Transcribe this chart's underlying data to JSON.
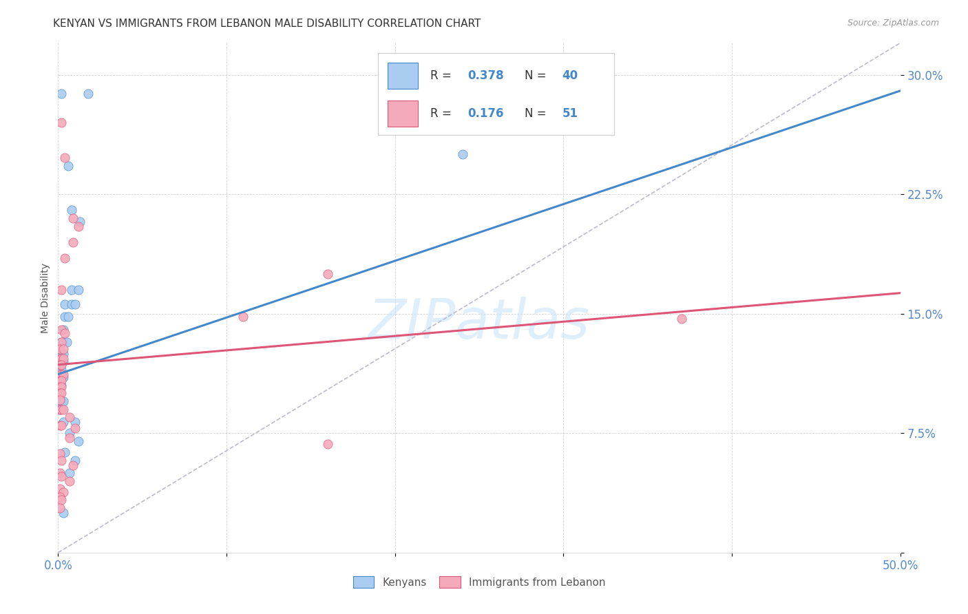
{
  "title": "KENYAN VS IMMIGRANTS FROM LEBANON MALE DISABILITY CORRELATION CHART",
  "source": "Source: ZipAtlas.com",
  "ylabel": "Male Disability",
  "xlim": [
    0.0,
    0.5
  ],
  "ylim": [
    0.0,
    0.32
  ],
  "xticks": [
    0.0,
    0.1,
    0.2,
    0.3,
    0.4,
    0.5
  ],
  "xticklabels": [
    "0.0%",
    "",
    "",
    "",
    "",
    "50.0%"
  ],
  "yticks": [
    0.0,
    0.075,
    0.15,
    0.225,
    0.3
  ],
  "yticklabels": [
    "",
    "7.5%",
    "15.0%",
    "22.5%",
    "30.0%"
  ],
  "legend_labels": [
    "Kenyans",
    "Immigrants from Lebanon"
  ],
  "blue_color": "#AACCF0",
  "pink_color": "#F4AABB",
  "blue_line_color": "#4488CC",
  "pink_line_color": "#DD5577",
  "dashed_line_color": "#BBBBCC",
  "watermark": "ZIPatlas",
  "kenyan_points": [
    [
      0.002,
      0.288
    ],
    [
      0.018,
      0.288
    ],
    [
      0.006,
      0.243
    ],
    [
      0.008,
      0.215
    ],
    [
      0.013,
      0.208
    ],
    [
      0.008,
      0.165
    ],
    [
      0.012,
      0.165
    ],
    [
      0.004,
      0.156
    ],
    [
      0.008,
      0.156
    ],
    [
      0.01,
      0.156
    ],
    [
      0.004,
      0.148
    ],
    [
      0.006,
      0.148
    ],
    [
      0.003,
      0.14
    ],
    [
      0.002,
      0.132
    ],
    [
      0.003,
      0.132
    ],
    [
      0.005,
      0.132
    ],
    [
      0.002,
      0.125
    ],
    [
      0.003,
      0.125
    ],
    [
      0.001,
      0.12
    ],
    [
      0.002,
      0.12
    ],
    [
      0.003,
      0.12
    ],
    [
      0.001,
      0.115
    ],
    [
      0.002,
      0.115
    ],
    [
      0.001,
      0.11
    ],
    [
      0.003,
      0.11
    ],
    [
      0.001,
      0.105
    ],
    [
      0.002,
      0.105
    ],
    [
      0.001,
      0.1
    ],
    [
      0.002,
      0.095
    ],
    [
      0.003,
      0.095
    ],
    [
      0.001,
      0.09
    ],
    [
      0.003,
      0.082
    ],
    [
      0.01,
      0.082
    ],
    [
      0.007,
      0.075
    ],
    [
      0.012,
      0.07
    ],
    [
      0.004,
      0.063
    ],
    [
      0.01,
      0.058
    ],
    [
      0.007,
      0.05
    ],
    [
      0.24,
      0.25
    ],
    [
      0.003,
      0.025
    ]
  ],
  "lebanon_points": [
    [
      0.002,
      0.27
    ],
    [
      0.004,
      0.248
    ],
    [
      0.009,
      0.21
    ],
    [
      0.012,
      0.205
    ],
    [
      0.009,
      0.195
    ],
    [
      0.004,
      0.185
    ],
    [
      0.16,
      0.175
    ],
    [
      0.002,
      0.165
    ],
    [
      0.11,
      0.148
    ],
    [
      0.002,
      0.14
    ],
    [
      0.004,
      0.138
    ],
    [
      0.002,
      0.132
    ],
    [
      0.001,
      0.128
    ],
    [
      0.003,
      0.128
    ],
    [
      0.001,
      0.122
    ],
    [
      0.002,
      0.122
    ],
    [
      0.003,
      0.122
    ],
    [
      0.001,
      0.118
    ],
    [
      0.002,
      0.118
    ],
    [
      0.001,
      0.112
    ],
    [
      0.002,
      0.112
    ],
    [
      0.003,
      0.112
    ],
    [
      0.001,
      0.108
    ],
    [
      0.002,
      0.108
    ],
    [
      0.001,
      0.104
    ],
    [
      0.002,
      0.104
    ],
    [
      0.001,
      0.1
    ],
    [
      0.002,
      0.1
    ],
    [
      0.001,
      0.096
    ],
    [
      0.001,
      0.09
    ],
    [
      0.002,
      0.09
    ],
    [
      0.003,
      0.09
    ],
    [
      0.007,
      0.085
    ],
    [
      0.001,
      0.08
    ],
    [
      0.002,
      0.08
    ],
    [
      0.01,
      0.078
    ],
    [
      0.007,
      0.072
    ],
    [
      0.16,
      0.068
    ],
    [
      0.001,
      0.062
    ],
    [
      0.002,
      0.058
    ],
    [
      0.009,
      0.055
    ],
    [
      0.001,
      0.05
    ],
    [
      0.002,
      0.048
    ],
    [
      0.007,
      0.045
    ],
    [
      0.37,
      0.147
    ],
    [
      0.001,
      0.04
    ],
    [
      0.003,
      0.038
    ],
    [
      0.001,
      0.035
    ],
    [
      0.002,
      0.033
    ],
    [
      0.001,
      0.028
    ]
  ],
  "blue_regression": {
    "x_start": 0.0,
    "x_end": 0.5,
    "y_start": 0.112,
    "y_end": 0.29
  },
  "pink_regression": {
    "x_start": 0.0,
    "x_end": 0.5,
    "y_start": 0.118,
    "y_end": 0.163
  },
  "dashed_regression": {
    "x_start": 0.0,
    "x_end": 0.5,
    "y_start": 0.0,
    "y_end": 0.32
  }
}
